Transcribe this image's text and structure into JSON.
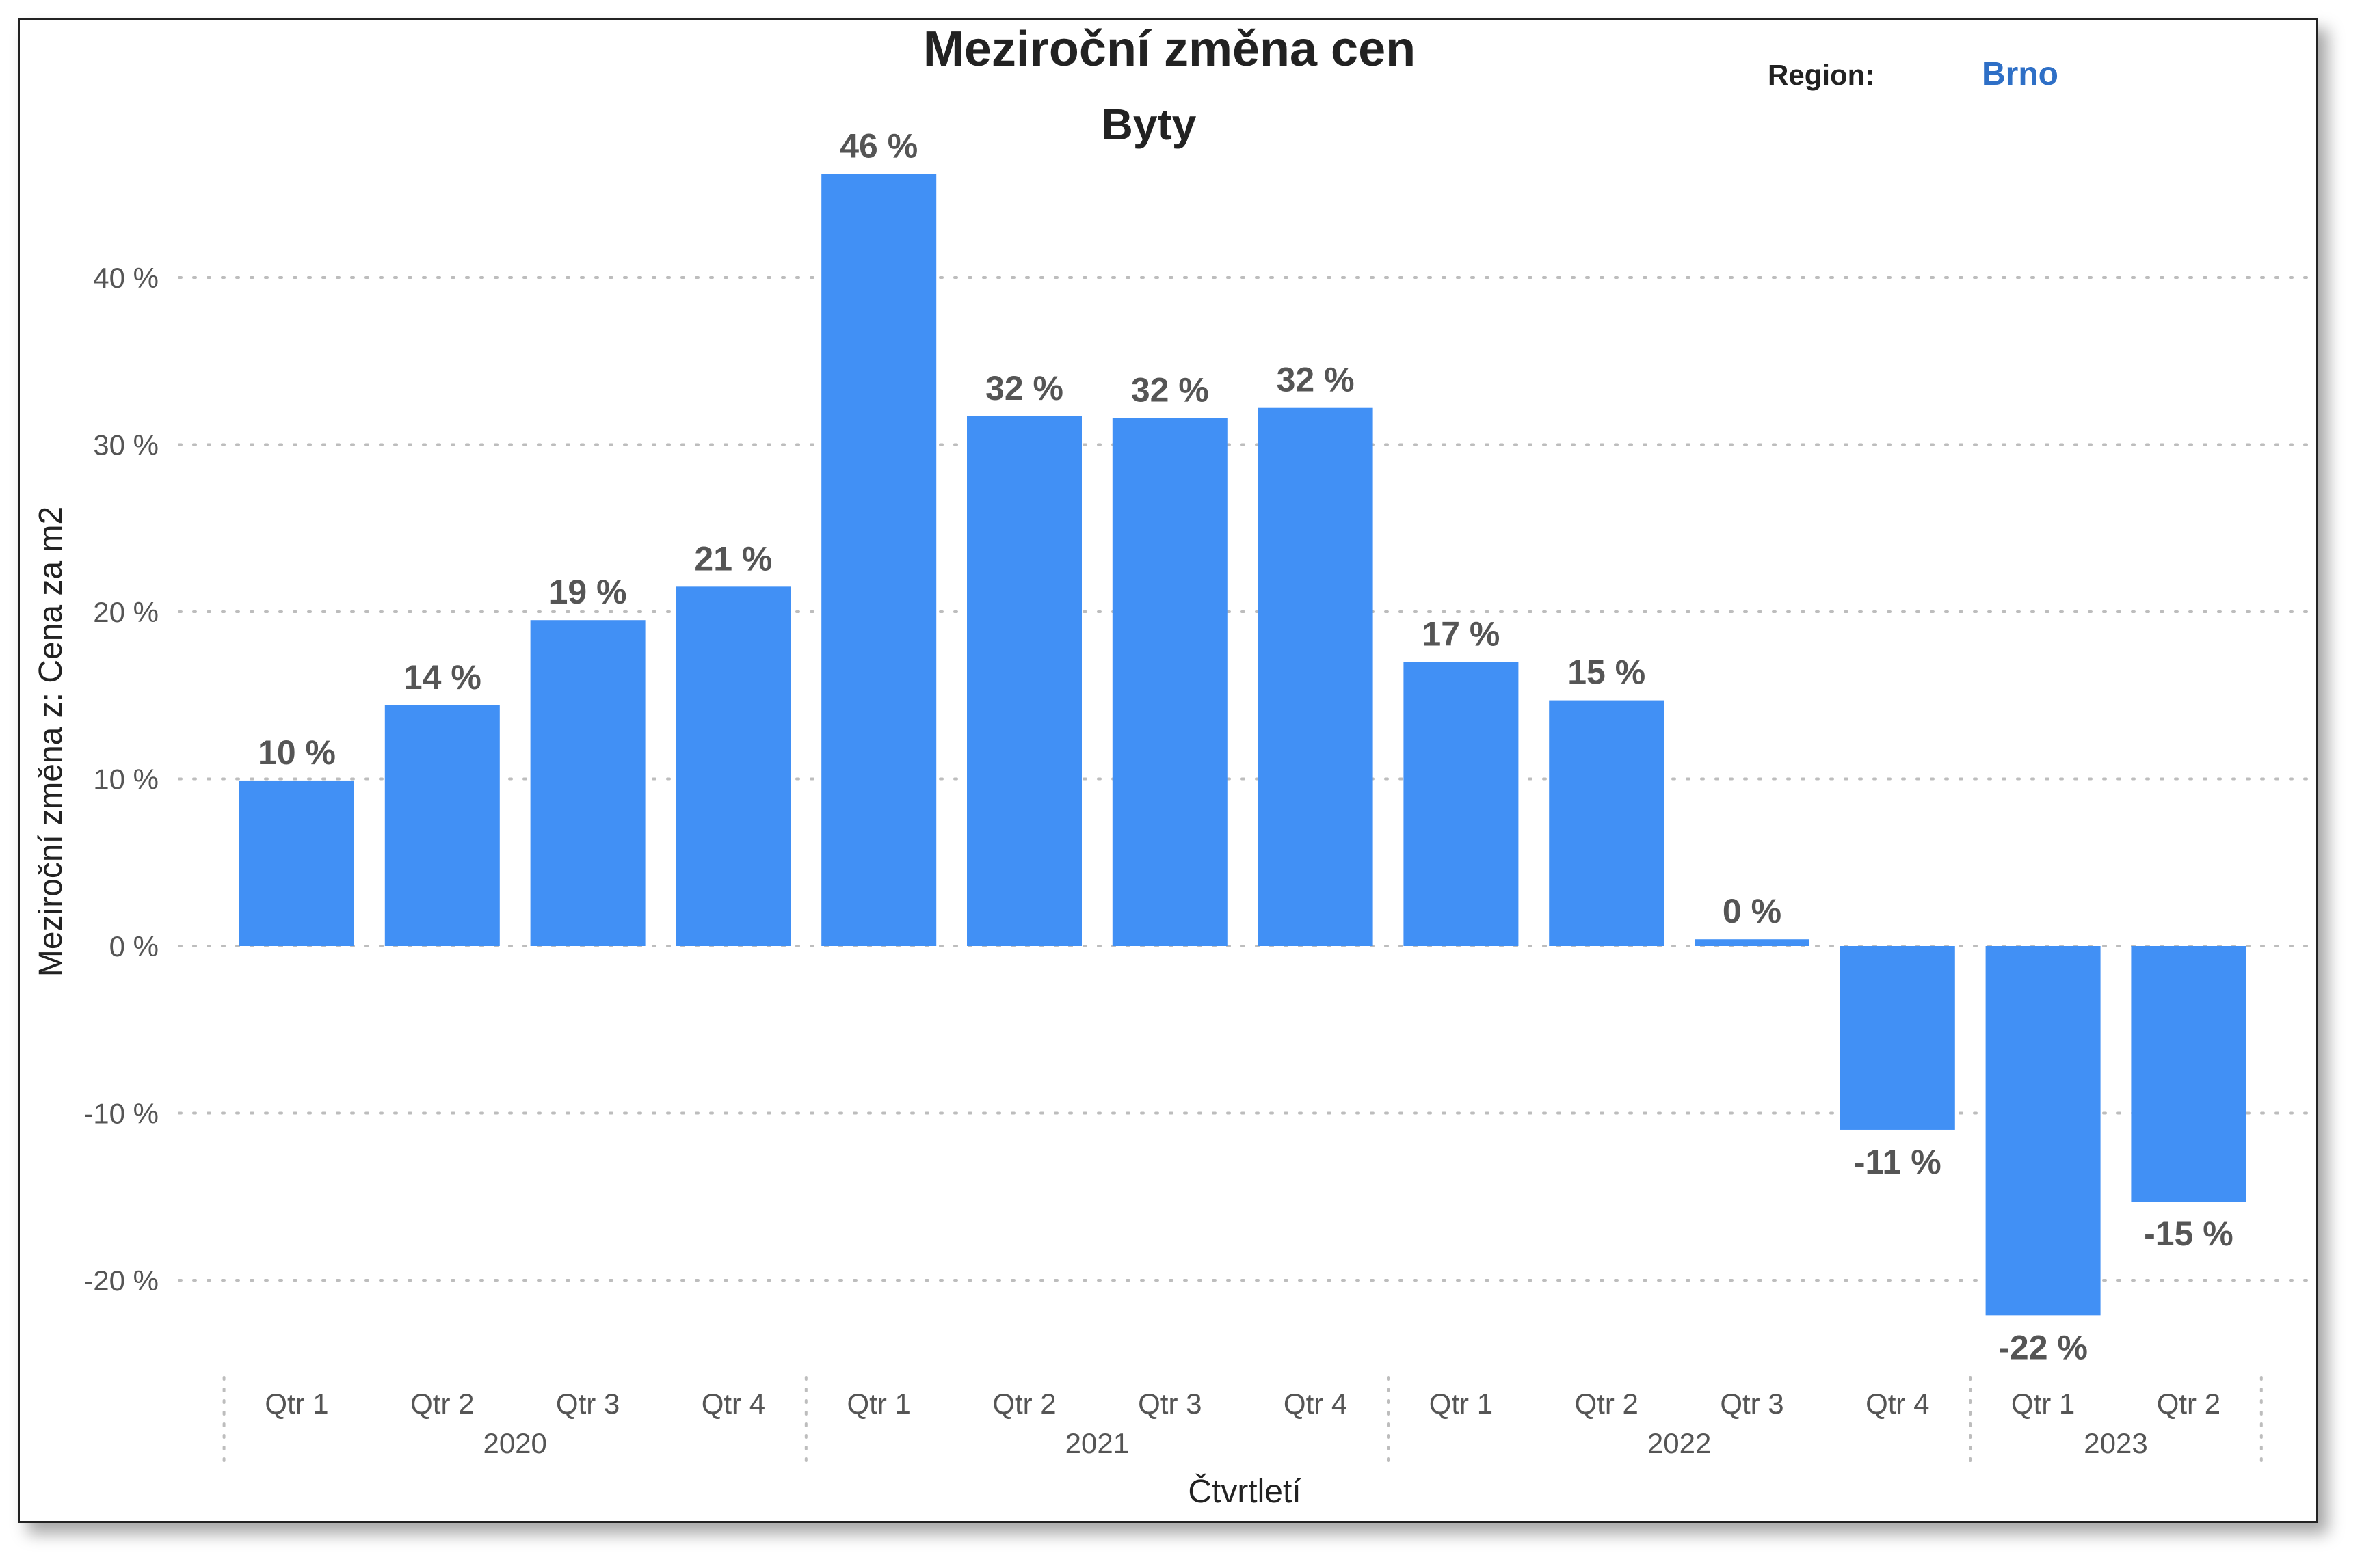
{
  "chart_data": {
    "type": "bar",
    "title": "Meziroční změna cen",
    "subtitle": "Byty",
    "filter": {
      "label": "Region:",
      "value": "Brno"
    },
    "xlabel": "Čtvrtletí",
    "ylabel": "Meziroční změna z: Cena za m2",
    "ylim": [
      -27,
      50
    ],
    "yticks": [
      -20,
      -10,
      0,
      10,
      20,
      30,
      40
    ],
    "ytick_labels": [
      "-20 %",
      "-10 %",
      "0 %",
      "10 %",
      "20 %",
      "30 %",
      "40 %"
    ],
    "grid": true,
    "bar_color": "#4190F5",
    "accent_color": "#2E6FC6",
    "categories": [
      "Qtr 1",
      "Qtr 2",
      "Qtr 3",
      "Qtr 4",
      "Qtr 1",
      "Qtr 2",
      "Qtr 3",
      "Qtr 4",
      "Qtr 1",
      "Qtr 2",
      "Qtr 3",
      "Qtr 4",
      "Qtr 1",
      "Qtr 2"
    ],
    "values": [
      9.9,
      14.4,
      19.5,
      21.5,
      46.2,
      31.7,
      31.6,
      32.2,
      17.0,
      14.7,
      0.4,
      -11.0,
      -22.1,
      -15.3
    ],
    "value_labels": [
      "10 %",
      "14 %",
      "19 %",
      "21 %",
      "46 %",
      "32 %",
      "32 %",
      "32 %",
      "17 %",
      "15 %",
      "0 %",
      "-11 %",
      "-22 %",
      "-15 %"
    ],
    "groups": [
      {
        "label": "2020",
        "count": 4
      },
      {
        "label": "2021",
        "count": 4
      },
      {
        "label": "2022",
        "count": 4
      },
      {
        "label": "2023",
        "count": 2
      }
    ]
  }
}
